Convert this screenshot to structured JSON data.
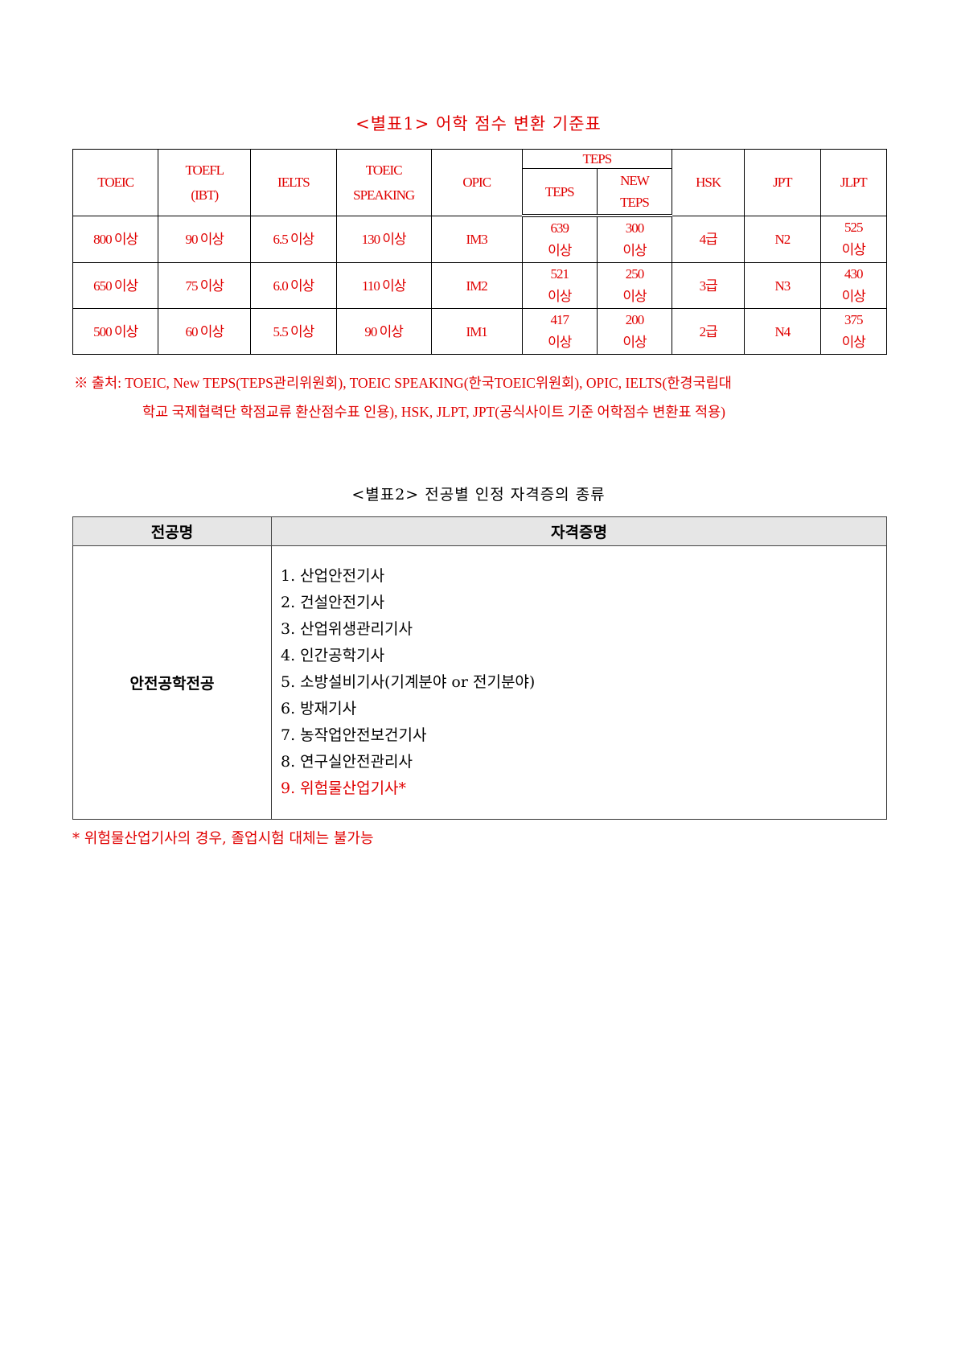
{
  "table1": {
    "title": "<별표1> 어학 점수 변환 기준표",
    "headers": {
      "toeic": "TOEIC",
      "toefl": [
        "TOEFL",
        "(IBT)"
      ],
      "ielts": "IELTS",
      "toeic_speaking": [
        "TOEIC",
        "SPEAKING"
      ],
      "opic": "OPIC",
      "teps_group": "TEPS",
      "teps": "TEPS",
      "new_teps": [
        "NEW",
        "TEPS"
      ],
      "hsk": "HSK",
      "jpt": "JPT",
      "jlpt": "JLPT"
    },
    "rows": [
      {
        "toeic": "800 이상",
        "toefl": "90 이상",
        "ielts": "6.5 이상",
        "toeic_speaking": "130 이상",
        "opic": "IM3",
        "teps": [
          "639",
          "이상"
        ],
        "new_teps": [
          "300",
          "이상"
        ],
        "hsk": "4급",
        "jpt": "N2",
        "jlpt": [
          "525",
          "이상"
        ]
      },
      {
        "toeic": "650 이상",
        "toefl": "75 이상",
        "ielts": "6.0 이상",
        "toeic_speaking": "110 이상",
        "opic": "IM2",
        "teps": [
          "521",
          "이상"
        ],
        "new_teps": [
          "250",
          "이상"
        ],
        "hsk": "3급",
        "jpt": "N3",
        "jlpt": [
          "430",
          "이상"
        ]
      },
      {
        "toeic": "500 이상",
        "toefl": "60 이상",
        "ielts": "5.5 이상",
        "toeic_speaking": "90 이상",
        "opic": "IM1",
        "teps": [
          "417",
          "이상"
        ],
        "new_teps": [
          "200",
          "이상"
        ],
        "hsk": "2급",
        "jpt": "N4",
        "jlpt": [
          "375",
          "이상"
        ]
      }
    ],
    "note_line1": "※  출처: TOEIC, New TEPS(TEPS관리위원회), TOEIC SPEAKING(한국TOEIC위원회), OPIC, IELTS(한경국립대",
    "note_line2": "학교 국제협력단 학점교류 환산점수표 인용), HSK, JLPT, JPT(공식사이트 기준 어학점수 변환표 적용)"
  },
  "table2": {
    "title": "<별표2> 전공별 인정 자격증의 종류",
    "headers": {
      "major": "전공명",
      "certs": "자격증명"
    },
    "major": "안전공학전공",
    "certs": [
      "1.  산업안전기사",
      "2.  건설안전기사",
      "3.  산업위생관리기사",
      "4.  인간공학기사",
      "5.  소방설비기사(기계분야 or 전기분야)",
      "6.  방재기사",
      "7.  농작업안전보건기사",
      "8.  연구실안전관리사",
      "9.  위험물산업기사*"
    ],
    "note": "*  위험물산업기사의 경우, 졸업시험 대체는 불가능"
  },
  "colors": {
    "red": "#e00000"
  }
}
